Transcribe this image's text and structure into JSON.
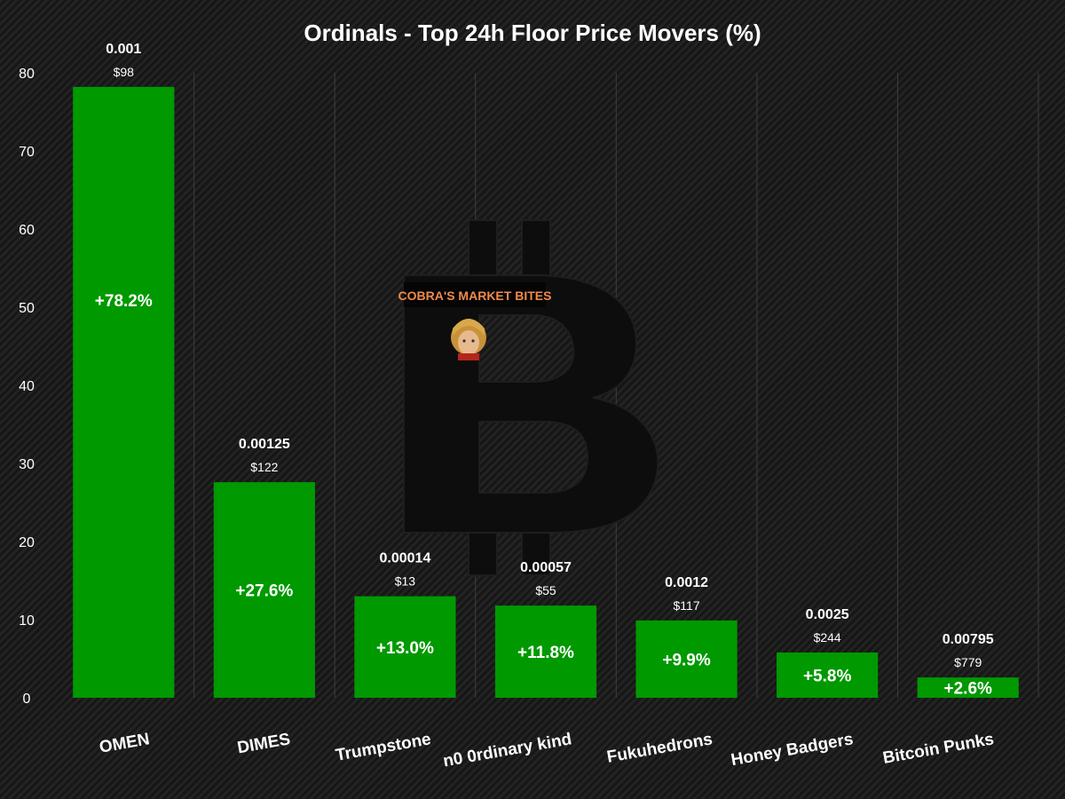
{
  "chart_data": {
    "type": "bar",
    "title": "Ordinals - Top 24h Floor Price Movers (%)",
    "xlabel": "",
    "ylabel": "",
    "ylim": [
      0,
      80
    ],
    "yticks": [
      0,
      10,
      20,
      30,
      40,
      50,
      60,
      70,
      80
    ],
    "grid": {
      "vertical": true,
      "horizontal": false
    },
    "categories": [
      "OMEN",
      "DIMES",
      "Trumpstone",
      "n0 0rdinary kind",
      "Fukuhedrons",
      "Honey Badgers",
      "Bitcoin Punks"
    ],
    "values": [
      78.2,
      27.6,
      13.0,
      11.8,
      9.9,
      5.8,
      2.6
    ],
    "value_labels": [
      "+78.2%",
      "+27.6%",
      "+13.0%",
      "+11.8%",
      "+9.9%",
      "+5.8%",
      "+2.6%"
    ],
    "floor_prices_btc": [
      "0.001",
      "0.00125",
      "0.00014",
      "0.00057",
      "0.0012",
      "0.0025",
      "0.00795"
    ],
    "floor_prices_usd": [
      "$98",
      "$122",
      "$13",
      "$55",
      "$117",
      "$244",
      "$779"
    ],
    "bar_color": "#009900"
  },
  "watermark": {
    "text": "COBRA'S MARKET BITES",
    "symbol": "bitcoin-logo",
    "text_color": "#f08a4b"
  }
}
